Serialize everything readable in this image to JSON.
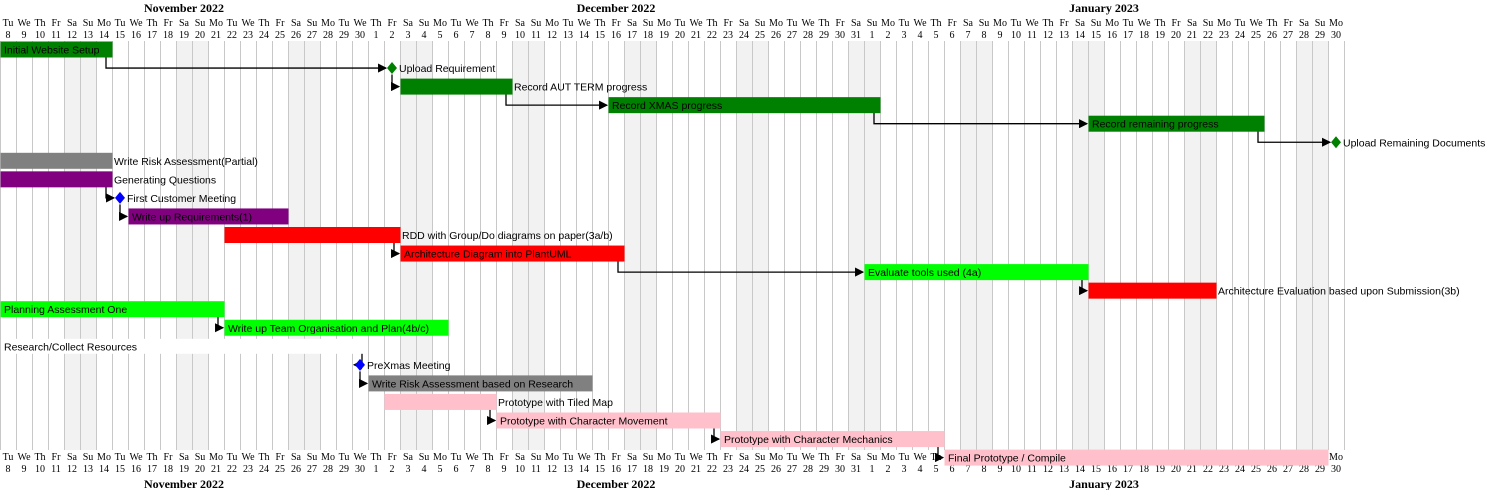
{
  "chart_data": {
    "type": "gantt",
    "start_date": "2022-11-08",
    "end_date": "2023-01-30",
    "months": [
      {
        "label": "November 2022",
        "start_index": 0,
        "end_index": 22
      },
      {
        "label": "December 2022",
        "start_index": 23,
        "end_index": 53
      },
      {
        "label": "January 2023",
        "start_index": 54,
        "end_index": 83
      }
    ],
    "weekdays": [
      "Tu",
      "We",
      "Th",
      "Fr",
      "Sa",
      "Su",
      "Mo",
      "Tu",
      "We",
      "Th",
      "Fr",
      "Sa",
      "Su",
      "Mo",
      "Tu",
      "We",
      "Th",
      "Fr",
      "Sa",
      "Su",
      "Mo",
      "Tu",
      "We",
      "Th",
      "Fr",
      "Sa",
      "Su",
      "Mo",
      "Tu",
      "We",
      "Th",
      "Fr",
      "Sa",
      "Su",
      "Mo",
      "Tu",
      "We",
      "Th",
      "Fr",
      "Sa",
      "Su",
      "Mo",
      "Tu",
      "We",
      "Th",
      "Fr",
      "Sa",
      "Su",
      "Mo",
      "Tu",
      "We",
      "Th",
      "Fr",
      "Sa",
      "Su",
      "Mo",
      "Tu",
      "We",
      "Th",
      "Fr",
      "Sa",
      "Su",
      "Mo",
      "Tu",
      "We",
      "Th",
      "Fr",
      "Sa",
      "Su",
      "Mo",
      "Tu",
      "We",
      "Th",
      "Fr",
      "Sa",
      "Su",
      "Mo",
      "Tu",
      "We",
      "Th",
      "Fr",
      "Sa",
      "Su",
      "Mo"
    ],
    "day_numbers": [
      "8",
      "9",
      "10",
      "11",
      "12",
      "13",
      "14",
      "15",
      "16",
      "17",
      "18",
      "19",
      "20",
      "21",
      "22",
      "23",
      "24",
      "25",
      "26",
      "27",
      "28",
      "29",
      "30",
      "1",
      "2",
      "3",
      "4",
      "5",
      "6",
      "7",
      "8",
      "9",
      "10",
      "11",
      "12",
      "13",
      "14",
      "15",
      "16",
      "17",
      "18",
      "19",
      "20",
      "21",
      "22",
      "23",
      "24",
      "25",
      "26",
      "27",
      "28",
      "29",
      "30",
      "31",
      "1",
      "2",
      "3",
      "4",
      "5",
      "6",
      "7",
      "8",
      "9",
      "10",
      "11",
      "12",
      "13",
      "14",
      "15",
      "16",
      "17",
      "18",
      "19",
      "20",
      "21",
      "22",
      "23",
      "24",
      "25",
      "26",
      "27",
      "28",
      "29",
      "30"
    ],
    "tasks": [
      {
        "id": "t0",
        "name": "Initial Website Setup",
        "start": 0,
        "duration": 7,
        "color": "#008000",
        "label_inside": true,
        "text_color": "#ffffff"
      },
      {
        "id": "t1",
        "name": "Upload Requirement",
        "start": 24,
        "duration": 0,
        "milestone": true,
        "color": "#008000",
        "label_inside": false
      },
      {
        "id": "t2",
        "name": "Record AUT TERM progress",
        "start": 25,
        "duration": 7,
        "color": "#008000",
        "label_inside": false
      },
      {
        "id": "t3",
        "name": "Record XMAS progress",
        "start": 38,
        "duration": 17,
        "color": "#008000",
        "label_inside": true,
        "text_color": "#ffffff"
      },
      {
        "id": "t4",
        "name": "Record remaining progress",
        "start": 68,
        "duration": 11,
        "color": "#008000",
        "label_inside": true,
        "text_color": "#ffffff"
      },
      {
        "id": "t5",
        "name": "Upload Remaining Documents",
        "start": 83,
        "duration": 0,
        "milestone": true,
        "color": "#008000",
        "label_inside": false
      },
      {
        "id": "t6",
        "name": "Write Risk Assessment(Partial)",
        "start": 0,
        "duration": 7,
        "color": "#808080",
        "label_inside": false
      },
      {
        "id": "t7",
        "name": "Generating Questions",
        "start": 0,
        "duration": 7,
        "color": "#800080",
        "label_inside": false
      },
      {
        "id": "t8",
        "name": "First Customer Meeting",
        "start": 7,
        "duration": 0,
        "milestone": true,
        "color": "#0000ff",
        "label_inside": false
      },
      {
        "id": "t9",
        "name": "Write up Requirements(1)",
        "start": 8,
        "duration": 10,
        "color": "#800080",
        "label_inside": true,
        "text_color": "#ffffff"
      },
      {
        "id": "t10",
        "name": "RDD with Group/Do diagrams on paper(3a/b)",
        "start": 14,
        "duration": 11,
        "color": "#ff0000",
        "label_inside": false
      },
      {
        "id": "t11",
        "name": "Architecture Diagram into PlantUML",
        "start": 25,
        "duration": 14,
        "color": "#ff0000",
        "label_inside": true,
        "text_color": "#ffffff"
      },
      {
        "id": "t12",
        "name": "Evaluate tools used (4a)",
        "start": 54,
        "duration": 14,
        "color": "#00ff00",
        "label_inside": true,
        "text_color": "#000000"
      },
      {
        "id": "t13",
        "name": "Architecture Evaluation based upon Submission(3b)",
        "start": 68,
        "duration": 8,
        "color": "#ff0000",
        "label_inside": false
      },
      {
        "id": "t14",
        "name": "Planning Assessment One",
        "start": 0,
        "duration": 14,
        "color": "#00ff00",
        "label_inside": true,
        "text_color": "#000000"
      },
      {
        "id": "t15",
        "name": "Write up Team Organisation and Plan(4b/c)",
        "start": 14,
        "duration": 14,
        "color": "#00ff00",
        "label_inside": true,
        "text_color": "#000000"
      },
      {
        "id": "t16",
        "name": "Research/Collect Resources",
        "start": 0,
        "duration": 23,
        "color": "#ffffff",
        "label_inside": true,
        "text_color": "#000000"
      },
      {
        "id": "t17",
        "name": "PreXmas Meeting",
        "start": 22,
        "duration": 0,
        "milestone": true,
        "color": "#0000ff",
        "label_inside": false
      },
      {
        "id": "t18",
        "name": "Write Risk Assessment based on Research",
        "start": 23,
        "duration": 14,
        "color": "#808080",
        "label_inside": true,
        "text_color": "#000000"
      },
      {
        "id": "t19",
        "name": "Prototype with Tiled Map",
        "start": 24,
        "duration": 7,
        "color": "#ffc0cb",
        "label_inside": false
      },
      {
        "id": "t20",
        "name": "Prototype with Character Movement",
        "start": 31,
        "duration": 14,
        "color": "#ffc0cb",
        "label_inside": true,
        "text_color": "#000000"
      },
      {
        "id": "t21",
        "name": "Prototype with Character Mechanics",
        "start": 45,
        "duration": 14,
        "color": "#ffc0cb",
        "label_inside": true,
        "text_color": "#000000"
      },
      {
        "id": "t22",
        "name": "Final Prototype / Compile",
        "start": 59,
        "duration": 24,
        "color": "#ffc0cb",
        "label_inside": true,
        "text_color": "#000000"
      }
    ],
    "dependencies": [
      [
        "t0",
        "t1"
      ],
      [
        "t1",
        "t2"
      ],
      [
        "t2",
        "t3"
      ],
      [
        "t3",
        "t4"
      ],
      [
        "t4",
        "t5"
      ],
      [
        "t7",
        "t8"
      ],
      [
        "t8",
        "t9"
      ],
      [
        "t10",
        "t11"
      ],
      [
        "t11",
        "t12"
      ],
      [
        "t12",
        "t13"
      ],
      [
        "t14",
        "t15"
      ],
      [
        "t16",
        "t17"
      ],
      [
        "t17",
        "t18"
      ],
      [
        "t19",
        "t20"
      ],
      [
        "t20",
        "t21"
      ],
      [
        "t21",
        "t22"
      ]
    ]
  }
}
